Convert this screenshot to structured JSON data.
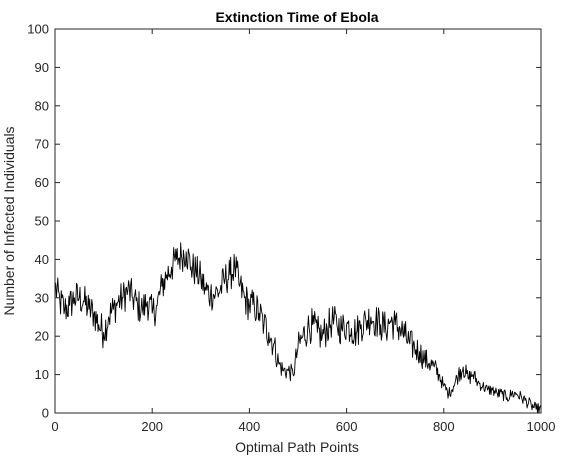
{
  "chart_data": {
    "type": "line",
    "title": "Extinction Time of Ebola",
    "xlabel": "Optimal Path Points",
    "ylabel": "Number of Infected Individuals",
    "xlim": [
      0,
      1000
    ],
    "ylim": [
      0,
      100
    ],
    "xticks": [
      0,
      200,
      400,
      600,
      800,
      1000
    ],
    "yticks": [
      0,
      10,
      20,
      30,
      40,
      50,
      60,
      70,
      80,
      90,
      100
    ],
    "grid": false,
    "line_color": "#000000",
    "series": [
      {
        "x": [
          0,
          10,
          20,
          30,
          40,
          50,
          60,
          70,
          80,
          90,
          100,
          110,
          120,
          130,
          140,
          150,
          160,
          170,
          180,
          190,
          200,
          210,
          220,
          230,
          240,
          250,
          260,
          270,
          280,
          290,
          300,
          310,
          320,
          330,
          340,
          350,
          360,
          370,
          380,
          390,
          400,
          410,
          420,
          430,
          440,
          450,
          460,
          470,
          480,
          490,
          500,
          510,
          520,
          530,
          540,
          550,
          560,
          570,
          580,
          590,
          600,
          610,
          620,
          630,
          640,
          650,
          660,
          670,
          680,
          690,
          700,
          710,
          720,
          730,
          740,
          750,
          760,
          770,
          780,
          790,
          800,
          810,
          820,
          830,
          840,
          850,
          860,
          870,
          880,
          890,
          900,
          910,
          920,
          930,
          940,
          950,
          960,
          970,
          980,
          990,
          1000
        ],
        "y": [
          33,
          29,
          27,
          28,
          30,
          30,
          29,
          27,
          26,
          23,
          21,
          25,
          27,
          29,
          30,
          32,
          30,
          28,
          27,
          29,
          26,
          28,
          33,
          36,
          38,
          40,
          41,
          42,
          38,
          37,
          35,
          32,
          31,
          31,
          32,
          35,
          36,
          38,
          33,
          30,
          28,
          28,
          26,
          23,
          21,
          18,
          13,
          11,
          11,
          10,
          17,
          20,
          22,
          23,
          21,
          20,
          22,
          24,
          23,
          22,
          23,
          22,
          21,
          23,
          24,
          25,
          24,
          23,
          22,
          24,
          23,
          22,
          20,
          18,
          17,
          16,
          14,
          13,
          12,
          10,
          7,
          5,
          7,
          10,
          12,
          9,
          10,
          8,
          7,
          6,
          6,
          5,
          5,
          4,
          5,
          5,
          4,
          3,
          2,
          1,
          1
        ]
      }
    ]
  }
}
